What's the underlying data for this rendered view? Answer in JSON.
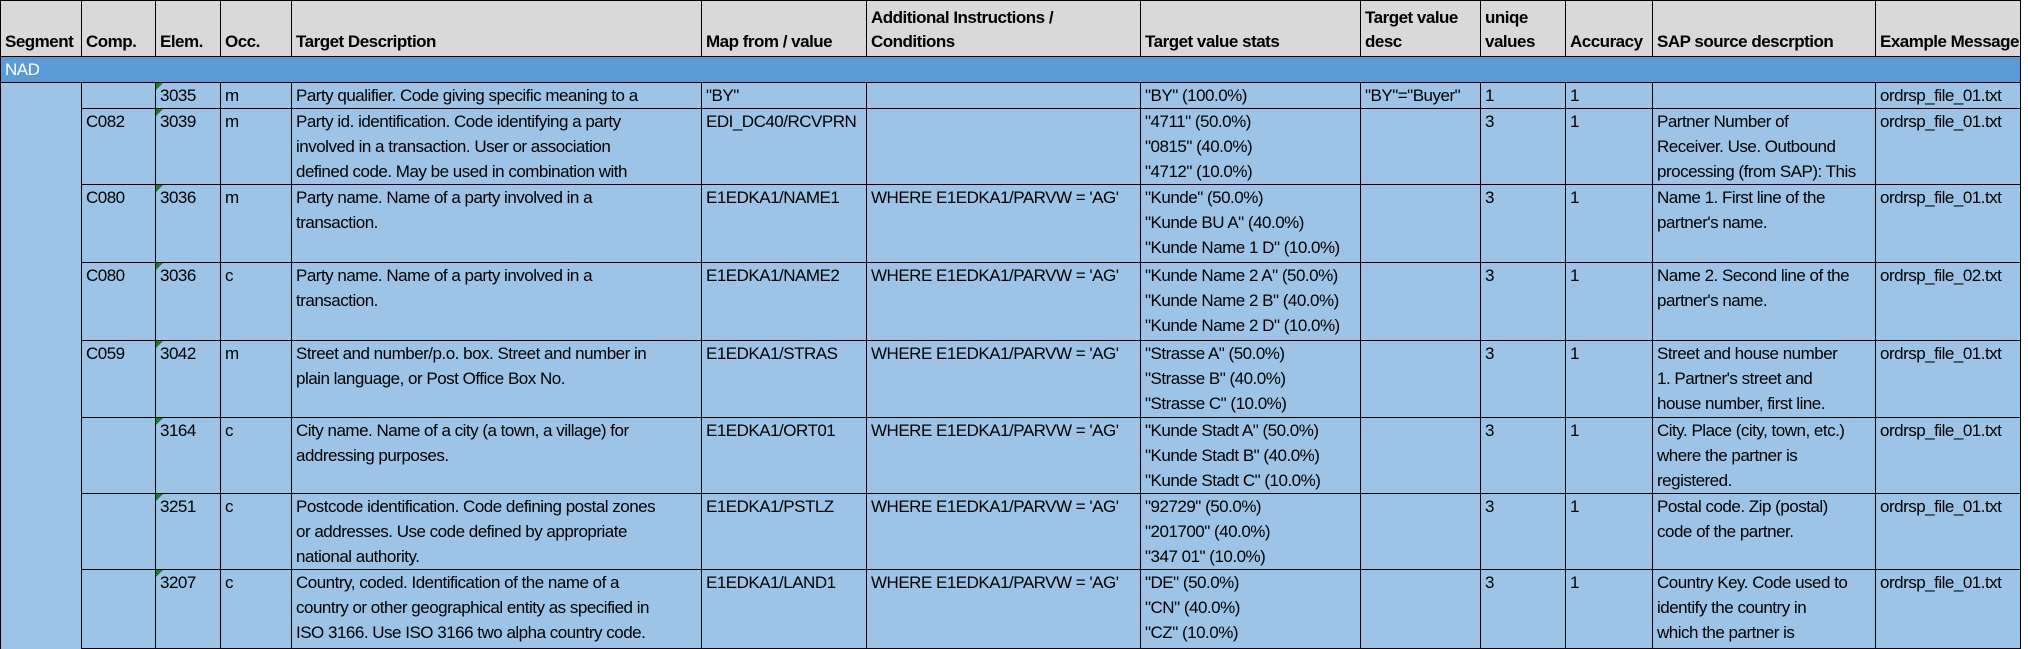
{
  "columns": [
    "Segment",
    "Comp.",
    "Elem.",
    "Occ.",
    "Target Description",
    "Map from / value",
    "Additional Instructions / Conditions",
    "Target value stats",
    "Target value desc",
    "uniqe values",
    "Accuracy",
    "SAP source descrption",
    "Example Message"
  ],
  "columns_wrapped": {
    "6": [
      "Additional Instructions /",
      "Conditions"
    ],
    "8": [
      "Target value",
      "desc"
    ],
    "9": [
      "uniqe",
      "values"
    ]
  },
  "segment": "NAD",
  "colors": {
    "header": "#d9d9d9",
    "segment": "#5b9bd5",
    "cell": "#9dc3e6",
    "comment_marker": "#1e7b34"
  },
  "rows": [
    {
      "comp": "",
      "elem": "3035",
      "occ": "m",
      "desc": [
        "Party qualifier. Code giving specific meaning to a"
      ],
      "map": "\"BY\"",
      "cond": "",
      "stats": [
        "\"BY\" (100.0%)"
      ],
      "tvdesc": "\"BY\"=\"Buyer\"",
      "uniq": "1",
      "acc": "1",
      "sap": [],
      "example": "ordrsp_file_01.txt"
    },
    {
      "comp": "C082",
      "elem": "3039",
      "occ": "m",
      "desc": [
        "Party id. identification. Code identifying a party",
        "involved in a transaction. User or association",
        "defined code. May be used in combination with"
      ],
      "map": "EDI_DC40/RCVPRN",
      "cond": "",
      "stats": [
        "\"4711\" (50.0%)",
        "\"0815\" (40.0%)",
        "\"4712\" (10.0%)"
      ],
      "tvdesc": "",
      "uniq": "3",
      "acc": "1",
      "sap": [
        "Partner Number of",
        "Receiver. Use. Outbound",
        "processing (from SAP): This"
      ],
      "example": "ordrsp_file_01.txt"
    },
    {
      "comp": "C080",
      "elem": "3036",
      "occ": "m",
      "desc": [
        "Party name. Name of a party involved in a",
        "transaction."
      ],
      "map": "E1EDKA1/NAME1",
      "cond": "WHERE E1EDKA1/PARVW = 'AG'",
      "stats": [
        "\"Kunde\" (50.0%)",
        "\"Kunde BU A\" (40.0%)",
        "\"Kunde Name 1 D\" (10.0%)"
      ],
      "tvdesc": "",
      "uniq": "3",
      "acc": "1",
      "sap": [
        "Name 1. First line of the",
        "partner's name."
      ],
      "example": "ordrsp_file_01.txt"
    },
    {
      "comp": "C080",
      "elem": "3036",
      "occ": "c",
      "desc": [
        "Party name. Name of a party involved in a",
        "transaction."
      ],
      "map": "E1EDKA1/NAME2",
      "cond": "WHERE E1EDKA1/PARVW = 'AG'",
      "stats": [
        "\"Kunde Name 2 A\" (50.0%)",
        "\"Kunde Name 2 B\" (40.0%)",
        "\"Kunde Name 2 D\" (10.0%)"
      ],
      "tvdesc": "",
      "uniq": "3",
      "acc": "1",
      "sap": [
        "Name 2. Second line of the",
        "partner's name."
      ],
      "example": "ordrsp_file_02.txt"
    },
    {
      "comp": "C059",
      "elem": "3042",
      "occ": "m",
      "desc": [
        "Street and number/p.o. box. Street and number in",
        "plain language, or Post Office Box No."
      ],
      "map": "E1EDKA1/STRAS",
      "cond": "WHERE E1EDKA1/PARVW = 'AG'",
      "stats": [
        "\"Strasse A\" (50.0%)",
        "\"Strasse B\" (40.0%)",
        "\"Strasse C\" (10.0%)"
      ],
      "tvdesc": "",
      "uniq": "3",
      "acc": "1",
      "sap": [
        "Street and house number",
        "1. Partner's street and",
        "house number, first line."
      ],
      "example": "ordrsp_file_01.txt"
    },
    {
      "comp": "",
      "elem": "3164",
      "occ": "c",
      "desc": [
        "City name. Name of a city (a town, a village) for",
        "addressing purposes."
      ],
      "map": "E1EDKA1/ORT01",
      "cond": "WHERE E1EDKA1/PARVW = 'AG'",
      "stats": [
        "\"Kunde Stadt A\" (50.0%)",
        "\"Kunde Stadt B\" (40.0%)",
        "\"Kunde Stadt C\" (10.0%)"
      ],
      "tvdesc": "",
      "uniq": "3",
      "acc": "1",
      "sap": [
        "City. Place (city, town, etc.)",
        "where the partner is",
        "registered."
      ],
      "example": "ordrsp_file_01.txt"
    },
    {
      "comp": "",
      "elem": "3251",
      "occ": "c",
      "desc": [
        "Postcode identification. Code defining postal zones",
        "or addresses. Use code defined by appropriate",
        "national authority."
      ],
      "map": "E1EDKA1/PSTLZ",
      "cond": "WHERE E1EDKA1/PARVW = 'AG'",
      "stats": [
        "\"92729\" (50.0%)",
        "\"201700\" (40.0%)",
        "\"347 01\" (10.0%)"
      ],
      "tvdesc": "",
      "uniq": "3",
      "acc": "1",
      "sap": [
        "Postal code. Zip (postal)",
        "code of the partner."
      ],
      "example": "ordrsp_file_01.txt"
    },
    {
      "comp": "",
      "elem": "3207",
      "occ": "c",
      "desc": [
        "Country, coded. Identification of the name of a",
        "country or other geographical entity as specified in",
        "ISO 3166. Use ISO 3166 two alpha country code."
      ],
      "map": "E1EDKA1/LAND1",
      "cond": "WHERE E1EDKA1/PARVW = 'AG'",
      "stats": [
        "\"DE\" (50.0%)",
        "\"CN\" (40.0%)",
        "\"CZ\" (10.0%)"
      ],
      "tvdesc": "",
      "uniq": "3",
      "acc": "1",
      "sap": [
        "Country Key. Code used to",
        "identify the country in",
        "which the partner is"
      ],
      "example": "ordrsp_file_01.txt"
    }
  ]
}
